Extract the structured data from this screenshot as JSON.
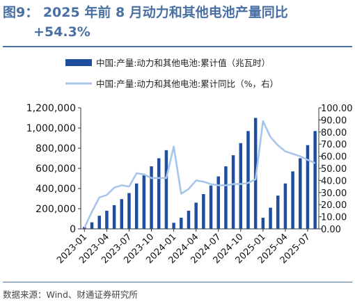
{
  "title_line1": "图9： 2025 年前 8 月动力和其他电池产量同比",
  "title_line2": "+54.3%",
  "source": "数据来源：Wind、财通证券研究所",
  "colors": {
    "bar": "#1f4e9e",
    "line": "#a7c5ea",
    "title": "#4a6fa3"
  },
  "chart_data": {
    "type": "bar+line",
    "legend": [
      "中国:产量:动力和其他电池:累计值（兆瓦时）",
      "中国:产量:动力和其他电池:累计同比（%，右）"
    ],
    "months": [
      "2023-01",
      "2023-02",
      "2023-03",
      "2023-04",
      "2023-05",
      "2023-06",
      "2023-07",
      "2023-08",
      "2023-09",
      "2023-10",
      "2023-11",
      "2023-12",
      "2024-01",
      "2024-02",
      "2024-03",
      "2024-04",
      "2024-05",
      "2024-06",
      "2024-07",
      "2024-08",
      "2024-09",
      "2024-10",
      "2024-11",
      "2024-12",
      "2025-01",
      "2025-02",
      "2025-03",
      "2025-04",
      "2025-05",
      "2025-06",
      "2025-07",
      "2025-08"
    ],
    "xtick_labels": [
      "2023-01",
      "2023-04",
      "2023-07",
      "2023-10",
      "2024-01",
      "2024-04",
      "2024-07",
      "2024-10",
      "2025-01",
      "2025-04",
      "2025-07"
    ],
    "bar_values": [
      20000,
      65000,
      130000,
      180000,
      235000,
      295000,
      355000,
      450000,
      530000,
      620000,
      700000,
      780000,
      60000,
      110000,
      180000,
      260000,
      345000,
      430000,
      520000,
      620000,
      730000,
      850000,
      970000,
      1100000,
      110000,
      210000,
      330000,
      450000,
      570000,
      700000,
      830000,
      970000
    ],
    "line_values": [
      1,
      14,
      26,
      28,
      34,
      36,
      35,
      46,
      45,
      42,
      42,
      42,
      68,
      29,
      33,
      40,
      39,
      37,
      36,
      36,
      37,
      37,
      38,
      41,
      89,
      76,
      69,
      64,
      62,
      60,
      57,
      54.3
    ],
    "y_left": {
      "min": 0,
      "max": 1200000,
      "step": 200000,
      "tick_labels": [
        "0",
        "200,000",
        "400,000",
        "600,000",
        "800,000",
        "1,000,000",
        "1,200,000"
      ]
    },
    "y_right": {
      "min": 0,
      "max": 100,
      "step": 10,
      "tick_labels": [
        "0.00",
        "10.00",
        "20.00",
        "30.00",
        "40.00",
        "50.00",
        "60.00",
        "70.00",
        "80.00",
        "90.00",
        "100.00"
      ]
    }
  }
}
